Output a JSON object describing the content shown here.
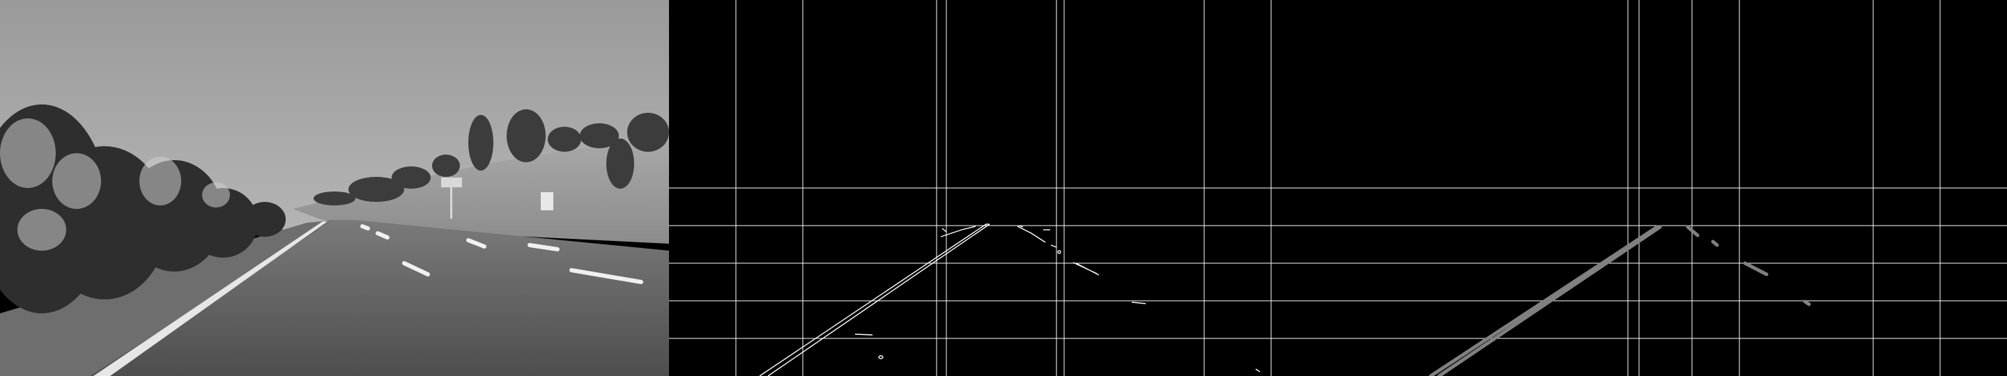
{
  "figure": {
    "panels": [
      {
        "name": "grayscale-road-photo",
        "description_shown_as": "picture"
      },
      {
        "name": "canny-edge-map",
        "description_shown_as": "picture"
      },
      {
        "name": "hough-lane-lines",
        "description_shown_as": "picture"
      }
    ],
    "colors": {
      "background": "#000000",
      "grid": "#ffffff",
      "edges": "#ffffff",
      "lanes": "#808080",
      "sky": "#a9a9a9",
      "road": "#5c5c5c"
    }
  }
}
